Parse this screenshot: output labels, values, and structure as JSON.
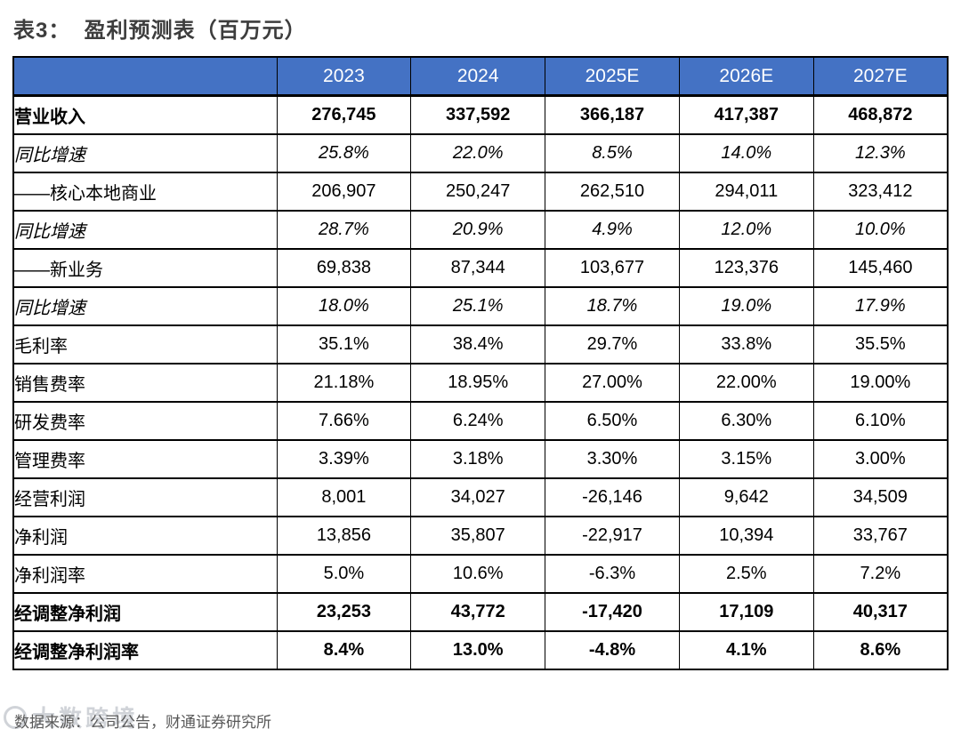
{
  "title": "表3：  盈利预测表（百万元）",
  "table": {
    "header": [
      "",
      "2023",
      "2024",
      "2025E",
      "2026E",
      "2027E"
    ],
    "rows": [
      {
        "label": "营业收入",
        "style": "bold",
        "values": [
          "276,745",
          "337,592",
          "366,187",
          "417,387",
          "468,872"
        ]
      },
      {
        "label": "同比增速",
        "style": "italic",
        "values": [
          "25.8%",
          "22.0%",
          "8.5%",
          "14.0%",
          "12.3%"
        ]
      },
      {
        "label": "——核心本地商业",
        "style": "normal",
        "values": [
          "206,907",
          "250,247",
          "262,510",
          "294,011",
          "323,412"
        ]
      },
      {
        "label": "同比增速",
        "style": "italic",
        "values": [
          "28.7%",
          "20.9%",
          "4.9%",
          "12.0%",
          "10.0%"
        ]
      },
      {
        "label": "——新业务",
        "style": "normal",
        "values": [
          "69,838",
          "87,344",
          "103,677",
          "123,376",
          "145,460"
        ]
      },
      {
        "label": "同比增速",
        "style": "italic",
        "values": [
          "18.0%",
          "25.1%",
          "18.7%",
          "19.0%",
          "17.9%"
        ]
      },
      {
        "label": "毛利率",
        "style": "normal",
        "values": [
          "35.1%",
          "38.4%",
          "29.7%",
          "33.8%",
          "35.5%"
        ]
      },
      {
        "label": "销售费率",
        "style": "normal",
        "values": [
          "21.18%",
          "18.95%",
          "27.00%",
          "22.00%",
          "19.00%"
        ]
      },
      {
        "label": "研发费率",
        "style": "normal",
        "values": [
          "7.66%",
          "6.24%",
          "6.50%",
          "6.30%",
          "6.10%"
        ]
      },
      {
        "label": "管理费率",
        "style": "normal",
        "values": [
          "3.39%",
          "3.18%",
          "3.30%",
          "3.15%",
          "3.00%"
        ]
      },
      {
        "label": "经营利润",
        "style": "normal",
        "values": [
          "8,001",
          "34,027",
          "-26,146",
          "9,642",
          "34,509"
        ]
      },
      {
        "label": "净利润",
        "style": "normal",
        "values": [
          "13,856",
          "35,807",
          "-22,917",
          "10,394",
          "33,767"
        ]
      },
      {
        "label": "净利润率",
        "style": "normal",
        "values": [
          "5.0%",
          "10.6%",
          "-6.3%",
          "2.5%",
          "7.2%"
        ]
      },
      {
        "label": "经调整净利润",
        "style": "bold",
        "values": [
          "23,253",
          "43,772",
          "-17,420",
          "17,109",
          "40,317"
        ]
      },
      {
        "label": "经调整净利润率",
        "style": "bold",
        "values": [
          "8.4%",
          "13.0%",
          "-4.8%",
          "4.1%",
          "8.6%"
        ]
      }
    ]
  },
  "source": "数据来源：公司公告，财通证券研究所",
  "watermark": "大数跨境",
  "colors": {
    "header_bg": "#4472C4",
    "header_text": "#FFFFFF",
    "title_text": "#3D3D3D",
    "source_text": "#595959",
    "border": "#000000"
  }
}
